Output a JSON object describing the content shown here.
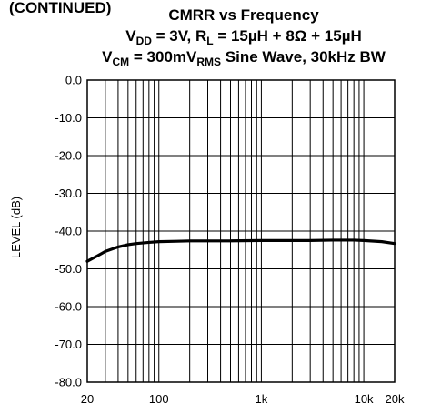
{
  "chart_data": {
    "type": "line",
    "title_top_fragment": "(CONTINUED)",
    "title_line1": "CMRR vs Frequency",
    "title_line2": {
      "v_main": "V",
      "v_sub": "DD",
      "eq1": " = 3V, R",
      "r_sub": "L",
      "eq2": " = 15µH + 8Ω + 15µH"
    },
    "title_line3": {
      "v_main": "V",
      "v_sub": "CM",
      "eq1": " = 300mV",
      "rms_sub": "RMS",
      "eq2": " Sine Wave, 30kHz BW"
    },
    "xlabel": "",
    "ylabel": "LEVEL (dB)",
    "x_scale": "log",
    "xlim": [
      20,
      20000
    ],
    "ylim": [
      -80,
      0
    ],
    "grid": true,
    "x_tick_labels": [
      {
        "value": 20,
        "label": "20"
      },
      {
        "value": 100,
        "label": "100"
      },
      {
        "value": 1000,
        "label": "1k"
      },
      {
        "value": 10000,
        "label": "10k"
      },
      {
        "value": 20000,
        "label": "20k"
      }
    ],
    "y_tick_labels": [
      {
        "value": 0,
        "label": "0.0"
      },
      {
        "value": -10,
        "label": "-10.0"
      },
      {
        "value": -20,
        "label": "-20.0"
      },
      {
        "value": -30,
        "label": "-30.0"
      },
      {
        "value": -40,
        "label": "-40.0"
      },
      {
        "value": -50,
        "label": "-50.0"
      },
      {
        "value": -60,
        "label": "-60.0"
      },
      {
        "value": -70,
        "label": "-70.0"
      },
      {
        "value": -80,
        "label": "-80.0"
      }
    ],
    "x_grid_values": [
      20,
      30,
      40,
      50,
      60,
      70,
      80,
      90,
      100,
      200,
      300,
      400,
      500,
      600,
      700,
      800,
      900,
      1000,
      2000,
      3000,
      4000,
      5000,
      6000,
      7000,
      8000,
      9000,
      10000,
      20000
    ],
    "series": [
      {
        "color": "#000000",
        "points": [
          [
            20,
            -48.0
          ],
          [
            25,
            -46.6
          ],
          [
            30,
            -45.4
          ],
          [
            40,
            -44.2
          ],
          [
            50,
            -43.6
          ],
          [
            60,
            -43.3
          ],
          [
            80,
            -43.0
          ],
          [
            100,
            -42.8
          ],
          [
            150,
            -42.7
          ],
          [
            200,
            -42.6
          ],
          [
            300,
            -42.6
          ],
          [
            500,
            -42.6
          ],
          [
            1000,
            -42.5
          ],
          [
            2000,
            -42.5
          ],
          [
            3000,
            -42.5
          ],
          [
            5000,
            -42.4
          ],
          [
            8000,
            -42.4
          ],
          [
            10000,
            -42.5
          ],
          [
            15000,
            -42.8
          ],
          [
            20000,
            -43.3
          ]
        ]
      }
    ]
  }
}
